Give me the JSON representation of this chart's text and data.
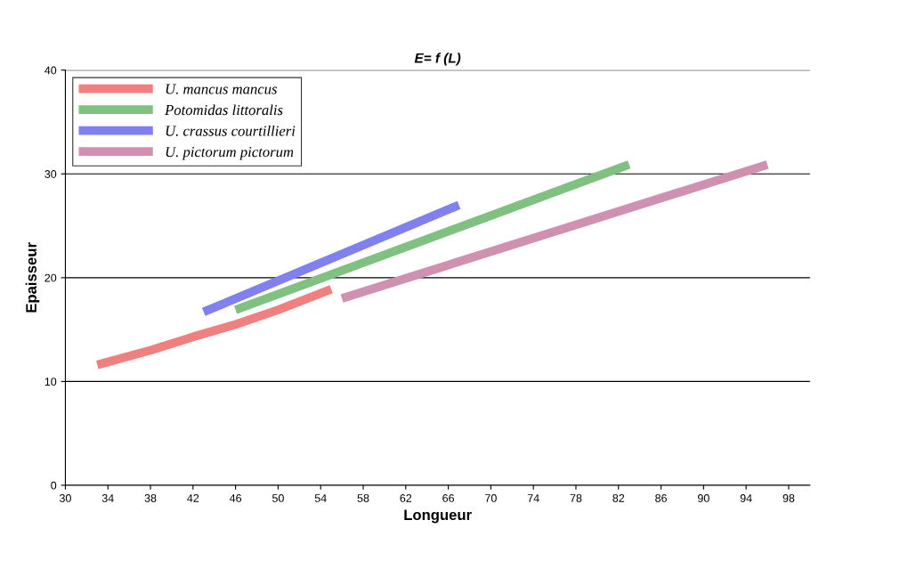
{
  "chart_data": {
    "type": "line",
    "title": "E= f (L)",
    "xlabel": "Longueur",
    "ylabel": "Epaisseur",
    "xlim": [
      30,
      100
    ],
    "xticks": [
      30,
      34,
      38,
      42,
      46,
      50,
      54,
      58,
      62,
      66,
      70,
      74,
      78,
      82,
      86,
      90,
      94,
      98
    ],
    "ylim": [
      0,
      40
    ],
    "yticks": [
      0,
      10,
      20,
      30,
      40
    ],
    "grid": "y",
    "legend": "top left",
    "marker": "none",
    "line_style": "solid",
    "series": [
      {
        "name": "U. mancus mancus",
        "color": "#f08080",
        "x": [
          33,
          38,
          42,
          46,
          50,
          55
        ],
        "values": [
          11.6,
          13.0,
          14.3,
          15.5,
          16.9,
          18.9
        ]
      },
      {
        "name": "Potomidas littoralis",
        "color": "#80c080",
        "x": [
          46,
          83
        ],
        "values": [
          16.9,
          30.9
        ]
      },
      {
        "name": "U. crassus courtillieri",
        "color": "#8080f0",
        "x": [
          43,
          67
        ],
        "values": [
          16.7,
          27.0
        ]
      },
      {
        "name": "U. pictorum pictorum",
        "color": "#d090b0",
        "x": [
          56,
          96
        ],
        "values": [
          18.0,
          30.9
        ]
      }
    ]
  }
}
